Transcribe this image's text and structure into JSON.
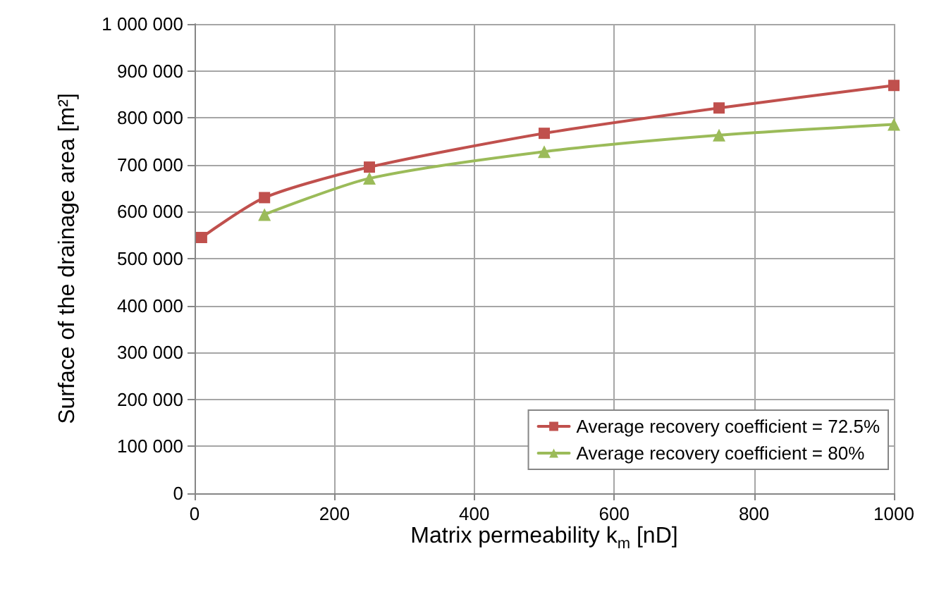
{
  "chart_data": {
    "type": "line",
    "xlabel": "Matrix permeability k$_{m}$ [nD]",
    "ylabel": "Surface of the drainage area [m²]",
    "xlim": [
      0,
      1000
    ],
    "xticks": [
      0,
      200,
      400,
      600,
      800,
      1000
    ],
    "ylim": [
      0,
      1000000
    ],
    "yticks": [
      {
        "value": 0,
        "label": "0"
      },
      {
        "value": 100000,
        "label": "100 000"
      },
      {
        "value": 200000,
        "label": "200 000"
      },
      {
        "value": 300000,
        "label": "300 000"
      },
      {
        "value": 400000,
        "label": "400 000"
      },
      {
        "value": 500000,
        "label": "500 000"
      },
      {
        "value": 600000,
        "label": "600 000"
      },
      {
        "value": 700000,
        "label": "700 000"
      },
      {
        "value": 800000,
        "label": "800 000"
      },
      {
        "value": 900000,
        "label": "900 000"
      },
      {
        "value": 1000000,
        "label": "1 000 000"
      }
    ],
    "grid": true,
    "legend": "bottom right",
    "line_style": "solid",
    "series": [
      {
        "name": "Average recovery coefficient = 72.5%",
        "color": "#c0504d",
        "marker": "square",
        "x": [
          10,
          100,
          250,
          500,
          750,
          1000
        ],
        "values": [
          545000,
          630000,
          695000,
          767000,
          821000,
          869000
        ]
      },
      {
        "name": "Average recovery coefficient = 80%",
        "color": "#9bbb59",
        "marker": "triangle",
        "x": [
          100,
          250,
          500,
          750,
          1000
        ],
        "values": [
          594000,
          671000,
          728000,
          763000,
          786000
        ]
      }
    ]
  }
}
